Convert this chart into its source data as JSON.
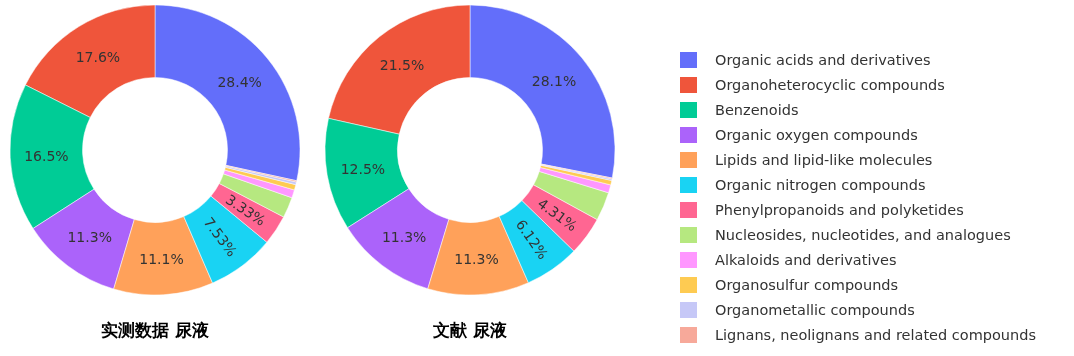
{
  "chart_data": [
    {
      "type": "donut",
      "title": "实测数据 尿液",
      "categories": [
        null,
        null,
        null,
        null,
        null,
        null,
        null,
        null,
        null,
        null,
        null,
        null
      ],
      "values": [
        28.4,
        17.6,
        16.5,
        11.3,
        11.1,
        7.53,
        3.33,
        2.3,
        0.9,
        0.6,
        0.3,
        0.14
      ],
      "value_labels": [
        "28.4%",
        "17.6%",
        "16.5%",
        "11.3%",
        "11.1%",
        "7.53%",
        "3.33%",
        null,
        null,
        null,
        null,
        null
      ],
      "colors": [
        "#636efa",
        "#ef553b",
        "#00cc96",
        "#ab63fa",
        "#ffa15a",
        "#19d3f3",
        "#ff6692",
        "#b6e880",
        "#ff97ff",
        "#fecb52",
        "#c6c8f7",
        "#f7a99a"
      ],
      "legend": false
    },
    {
      "type": "donut",
      "title": "文献 尿液",
      "categories": [
        "Organic acids and derivatives",
        "Organoheterocyclic compounds",
        "Benzenoids",
        "Organic oxygen compounds",
        "Lipids and lipid-like molecules",
        "Organic nitrogen compounds",
        "Phenylpropanoids and polyketides",
        "Nucleosides, nucleotides, and analogues",
        "Alkaloids and derivatives",
        "Organosulfur compounds",
        "Organometallic compounds",
        "Lignans, neolignans and related compounds"
      ],
      "values": [
        28.1,
        21.5,
        12.5,
        11.3,
        11.3,
        6.12,
        4.31,
        3.2,
        0.9,
        0.5,
        0.17,
        0.1
      ],
      "value_labels": [
        "28.1%",
        "21.5%",
        "12.5%",
        "11.3%",
        "11.3%",
        "6.12%",
        "4.31%",
        null,
        null,
        null,
        null,
        null
      ],
      "colors": [
        "#636efa",
        "#ef553b",
        "#00cc96",
        "#ab63fa",
        "#ffa15a",
        "#19d3f3",
        "#ff6692",
        "#b6e880",
        "#ff97ff",
        "#fecb52",
        "#c6c8f7",
        "#f7a99a"
      ],
      "legend": "right"
    }
  ]
}
